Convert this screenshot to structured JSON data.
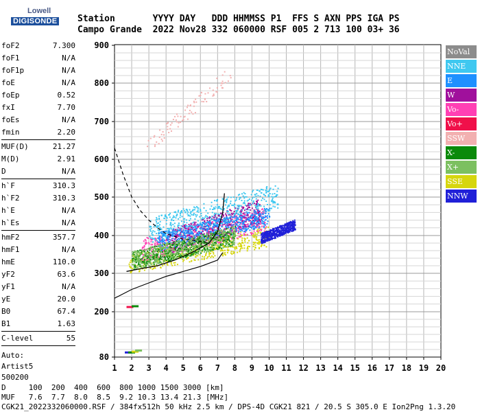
{
  "logo": {
    "line1": "Lowell",
    "line2": "DIGISONDE"
  },
  "header": {
    "line1": "Station       YYYY DAY   DDD HHMMSS P1  FFS S AXN PPS IGA PS",
    "line2": "Campo Grande  2022 Nov28 332 060000 RSF 005 2 713 100 03+ 36"
  },
  "params": [
    {
      "k": "foF2",
      "v": "7.300"
    },
    {
      "k": "foF1",
      "v": "N/A"
    },
    {
      "k": "foF1p",
      "v": "N/A"
    },
    {
      "k": "foE",
      "v": "N/A"
    },
    {
      "k": "foEp",
      "v": "0.52"
    },
    {
      "k": "fxI",
      "v": "7.70"
    },
    {
      "k": "foEs",
      "v": "N/A"
    },
    {
      "k": "fmin",
      "v": "2.20"
    },
    {
      "sep": true
    },
    {
      "k": "MUF(D)",
      "v": "21.27"
    },
    {
      "k": "M(D)",
      "v": "2.91"
    },
    {
      "k": "D",
      "v": "N/A"
    },
    {
      "sep": true
    },
    {
      "k": "h`F",
      "v": "310.3"
    },
    {
      "k": "h`F2",
      "v": "310.3"
    },
    {
      "k": "h`E",
      "v": "N/A"
    },
    {
      "k": "h`Es",
      "v": "N/A"
    },
    {
      "sep": true
    },
    {
      "k": "hmF2",
      "v": "357.7"
    },
    {
      "k": "hmF1",
      "v": "N/A"
    },
    {
      "k": "hmE",
      "v": "110.0"
    },
    {
      "k": "yF2",
      "v": "63.6"
    },
    {
      "k": "yF1",
      "v": "N/A"
    },
    {
      "k": "yE",
      "v": "20.0"
    },
    {
      "k": "B0",
      "v": "67.4"
    },
    {
      "k": "B1",
      "v": "1.63"
    },
    {
      "sep": true
    },
    {
      "k": "C-level",
      "v": "55"
    },
    {
      "sep": true
    }
  ],
  "autoscale": [
    "Auto:",
    "Artist5",
    "500200"
  ],
  "legend": [
    {
      "label": "NoVal",
      "color": "#8c8c8c"
    },
    {
      "label": "NNE",
      "color": "#3fc8f0"
    },
    {
      "label": "E",
      "color": "#1e90ff"
    },
    {
      "label": "W",
      "color": "#a0109c"
    },
    {
      "label": "Vo-",
      "color": "#ff40b4"
    },
    {
      "label": "Vo+",
      "color": "#f0104a"
    },
    {
      "label": "SSW",
      "color": "#f2b0b0"
    },
    {
      "label": "X-",
      "color": "#0a8a0a"
    },
    {
      "label": "X+",
      "color": "#7cc060"
    },
    {
      "label": "SSE",
      "color": "#d6d60e"
    },
    {
      "label": "NNW",
      "color": "#2020d8"
    }
  ],
  "footer": {
    "line1": "D     100  200  400  600  800 1000 1500 3000 [km]",
    "line2": "MUF   7.6  7.7  8.0  8.5  9.2 10.3 13.4 21.3 [MHz]",
    "line3": "CGK21_2022332060000.RSF / 384fx512h 50 kHz 2.5 km / DPS-4D CGK21 821 / 20.5 S 305.0 E Ion2Png 1.3.20"
  },
  "chart_data": {
    "type": "scatter",
    "title": "",
    "xlabel": "",
    "ylabel": "",
    "xlim": [
      1,
      20
    ],
    "ylim": [
      80,
      900
    ],
    "x_ticks": [
      1,
      2,
      3,
      4,
      5,
      6,
      7,
      8,
      9,
      10,
      11,
      12,
      13,
      14,
      15,
      16,
      17,
      18,
      19,
      20
    ],
    "y_ticks": [
      80,
      200,
      300,
      400,
      500,
      600,
      700,
      800,
      900
    ],
    "grid": true,
    "legend_placement": "right",
    "clusters": [
      {
        "color": "#d6d60e",
        "fmin": 1.8,
        "fmax": 10.0,
        "hmin": 300,
        "hmax": 420
      },
      {
        "color": "#ff40b4",
        "fmin": 2.5,
        "fmax": 9.8,
        "hmin": 330,
        "hmax": 470
      },
      {
        "color": "#a0109c",
        "fmin": 4.0,
        "fmax": 9.5,
        "hmin": 350,
        "hmax": 490
      },
      {
        "color": "#3fc8f0",
        "fmin": 3.0,
        "fmax": 10.5,
        "hmin": 380,
        "hmax": 530
      },
      {
        "color": "#1e90ff",
        "fmin": 3.5,
        "fmax": 10.0,
        "hmin": 360,
        "hmax": 470
      },
      {
        "color": "#2020d8",
        "fmin": 9.5,
        "fmax": 11.5,
        "hmin": 380,
        "hmax": 440
      },
      {
        "color": "#f2b0b0",
        "fmin": 2.8,
        "fmax": 7.8,
        "hmin": 630,
        "hmax": 830
      },
      {
        "color": "#0a8a0a",
        "fmin": 2.0,
        "fmax": 8.0,
        "hmin": 310,
        "hmax": 420
      },
      {
        "color": "#7cc060",
        "fmin": 2.0,
        "fmax": 8.0,
        "hmin": 310,
        "hmax": 420
      }
    ],
    "trace_solid": [
      [
        1.0,
        235
      ],
      [
        2.0,
        258
      ],
      [
        3.0,
        275
      ],
      [
        4.0,
        292
      ],
      [
        5.0,
        305
      ],
      [
        6.0,
        318
      ],
      [
        7.0,
        335
      ],
      [
        7.3,
        355
      ]
    ],
    "trace_dashed": [
      [
        1.0,
        630
      ],
      [
        1.5,
        560
      ],
      [
        2.0,
        500
      ],
      [
        2.5,
        465
      ],
      [
        3.0,
        440
      ],
      [
        3.5,
        420
      ],
      [
        4.0,
        405
      ],
      [
        5.0,
        390
      ],
      [
        6.0,
        385
      ],
      [
        6.5,
        380
      ]
    ],
    "trace_virtual": [
      [
        1.7,
        305
      ],
      [
        2.5,
        312
      ],
      [
        3.5,
        320
      ],
      [
        4.5,
        335
      ],
      [
        5.5,
        355
      ],
      [
        6.5,
        380
      ],
      [
        7.0,
        410
      ],
      [
        7.3,
        460
      ],
      [
        7.4,
        510
      ]
    ]
  }
}
